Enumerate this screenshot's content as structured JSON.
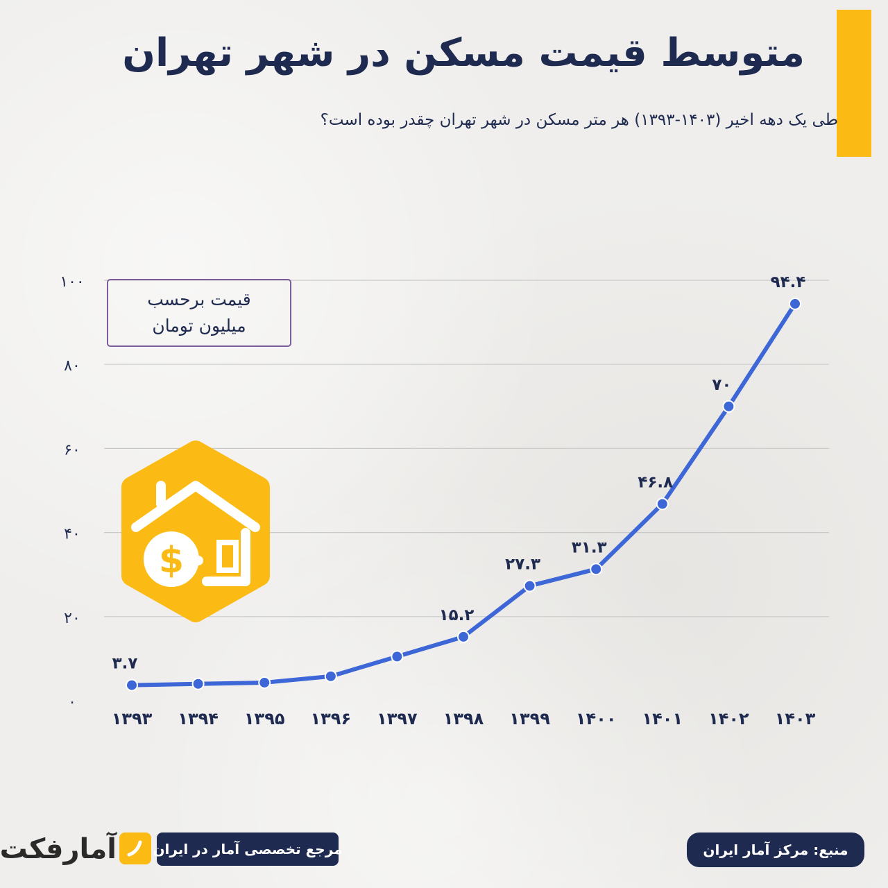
{
  "header": {
    "title": "متوسط قیمت مسکن در شهر تهران",
    "subtitle": "طی یک دهه اخیر (۱۴۰۳-۱۳۹۳) هر متر مسکن در شهر تهران چقدر بوده است؟"
  },
  "unit_note": {
    "line1": "قیمت برحسب",
    "line2": "میلیون تومان"
  },
  "footer": {
    "source": "منبع: مرکز آمار ایران",
    "reference": "مرجع تخصصی آمار در ایران",
    "logo": "آمارفکت"
  },
  "colors": {
    "accent": "#fbbb14",
    "navy": "#1e2a4f",
    "line": "#3d67d6",
    "grid": "#c9c9c9",
    "unit_border": "#7b5d9a"
  },
  "chart_data": {
    "type": "line",
    "xlabel": "",
    "ylabel": "",
    "categories": [
      "۱۳۹۳",
      "۱۳۹۴",
      "۱۳۹۵",
      "۱۳۹۶",
      "۱۳۹۷",
      "۱۳۹۸",
      "۱۳۹۹",
      "۱۴۰۰",
      "۱۴۰۱",
      "۱۴۰۲",
      "۱۴۰۳"
    ],
    "series": [
      {
        "values": [
          3.7,
          4.0,
          4.3,
          5.8,
          10.5,
          15.2,
          27.3,
          31.3,
          46.8,
          70,
          94.4
        ],
        "labels": [
          "۳.۷",
          "",
          "",
          "",
          "",
          "۱۵.۲",
          "۲۷.۳",
          "۳۱.۳",
          "۴۶.۸",
          "۷۰",
          "۹۴.۴"
        ]
      }
    ],
    "ylim": [
      0,
      100
    ],
    "yticks": [
      0,
      20,
      40,
      60,
      80,
      100
    ],
    "ytick_labels": [
      "۰",
      "۲۰",
      "۴۰",
      "۶۰",
      "۸۰",
      "۱۰۰"
    ],
    "grid": true,
    "legend": "none"
  }
}
